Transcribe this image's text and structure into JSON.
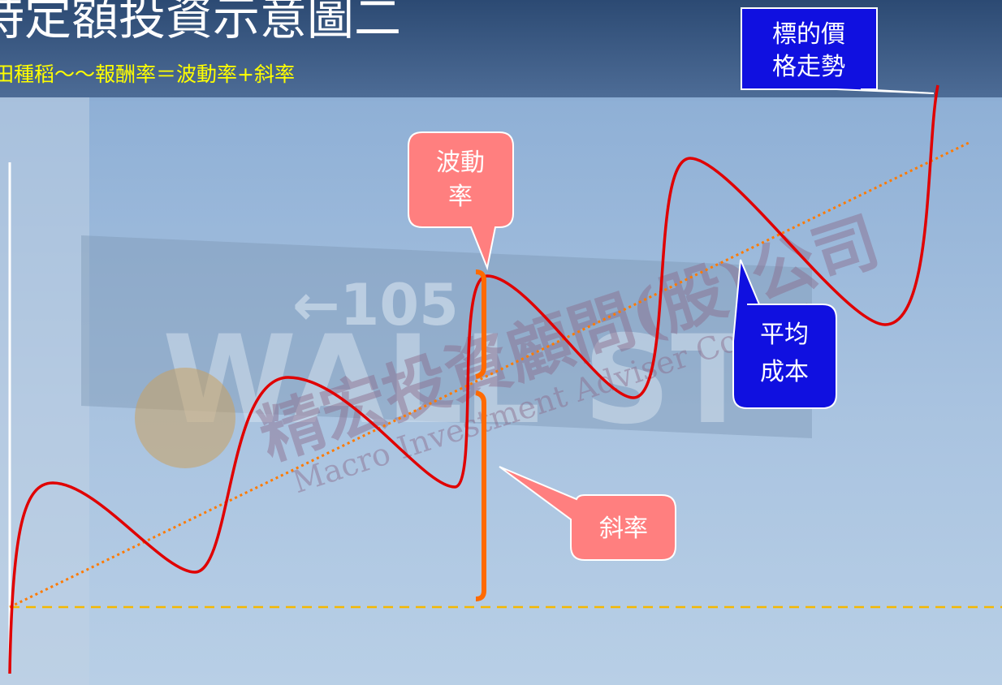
{
  "header": {
    "title": "時定額投資示意圖二",
    "subtitle": "田種稻～～報酬率＝波動率+斜率"
  },
  "callouts": {
    "price_trend": [
      "標的價",
      "格走勢"
    ],
    "volatility": [
      "波動",
      "率"
    ],
    "slope": [
      "斜率"
    ],
    "average_cost": [
      "平均",
      "成本"
    ]
  },
  "watermark": {
    "name": "精宏投資顧問(股)公司",
    "english": "Macro Investment Adviser Co., Ltd."
  },
  "background": {
    "sign_number": "←105",
    "sign_street": "WALL ST"
  }
}
